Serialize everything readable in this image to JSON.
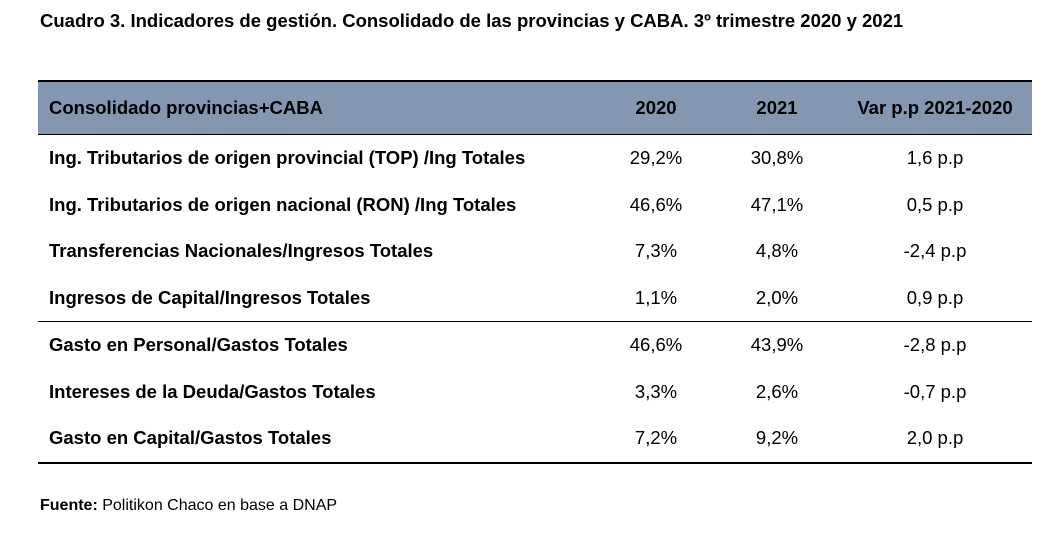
{
  "title": "Cuadro 3. Indicadores de gestión. Consolidado de las provincias y CABA. 3º trimestre 2020 y 2021",
  "source": {
    "label": "Fuente:",
    "text": "Politikon Chaco en base a DNAP"
  },
  "chart_data": {
    "type": "table",
    "title": "Cuadro 3. Indicadores de gestión. Consolidado de las provincias y CABA. 3º trimestre 2020 y 2021",
    "columns": [
      "Consolidado provincias+CABA",
      "2020",
      "2021",
      "Var p.p 2021-2020"
    ],
    "header_colors": {
      "background": "#8496b0"
    },
    "rows": [
      {
        "label": "Ing. Tributarios de origen provincial (TOP) /Ing Totales",
        "v2020": "29,2%",
        "v2021": "30,8%",
        "var": "1,6 p.p"
      },
      {
        "label": "Ing. Tributarios de origen nacional (RON) /Ing Totales",
        "v2020": "46,6%",
        "v2021": "47,1%",
        "var": "0,5 p.p"
      },
      {
        "label": "Transferencias Nacionales/Ingresos Totales",
        "v2020": "7,3%",
        "v2021": "4,8%",
        "var": "-2,4 p.p"
      },
      {
        "label": "Ingresos de Capital/Ingresos Totales",
        "v2020": "1,1%",
        "v2021": "2,0%",
        "var": "0,9 p.p"
      },
      {
        "label": "Gasto en Personal/Gastos Totales",
        "v2020": "46,6%",
        "v2021": "43,9%",
        "var": "-2,8 p.p"
      },
      {
        "label": "Intereses de la Deuda/Gastos Totales",
        "v2020": "3,3%",
        "v2021": "2,6%",
        "var": "-0,7 p.p"
      },
      {
        "label": "Gasto en Capital/Gastos Totales",
        "v2020": "7,2%",
        "v2021": "9,2%",
        "var": "2,0 p.p"
      }
    ]
  }
}
